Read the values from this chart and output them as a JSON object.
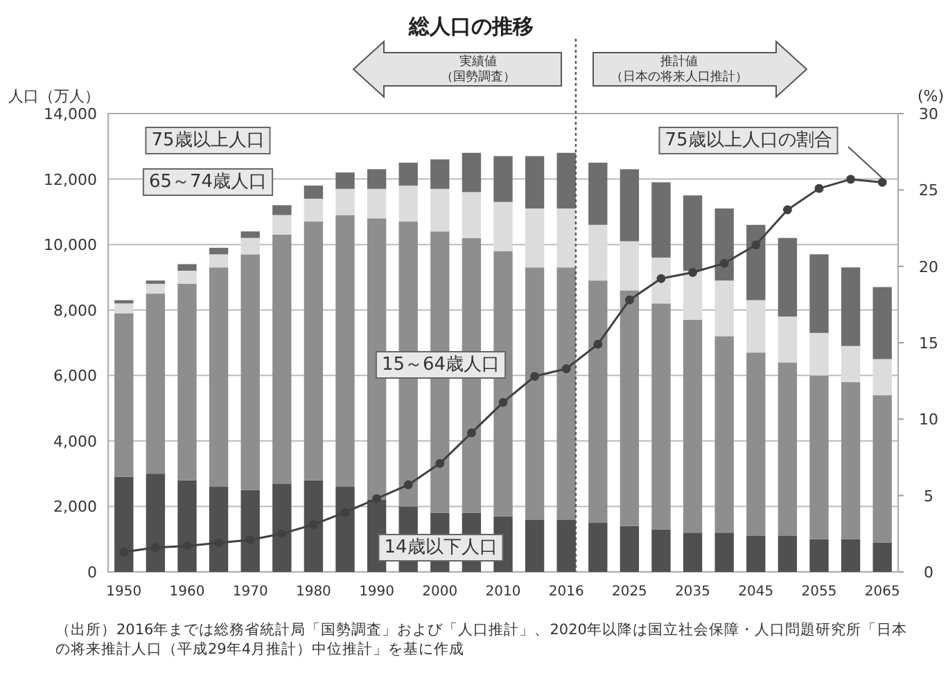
{
  "chart_data": {
    "type": "bar",
    "stacked": true,
    "title": "総人口の推移",
    "ylabel": "人口（万人）",
    "y2label": "(%)",
    "categories": [
      "1950",
      null,
      "1960",
      null,
      "1970",
      null,
      "1980",
      null,
      "1990",
      null,
      "2000",
      null,
      "2010",
      null,
      "2016",
      null,
      "2025",
      null,
      "2035",
      null,
      "2045",
      null,
      "2055",
      null,
      "2065"
    ],
    "series": [
      {
        "name": "14歳以下人口",
        "color": "#505050",
        "values": [
          2900,
          3000,
          2800,
          2600,
          2500,
          2700,
          2800,
          2600,
          2200,
          2000,
          1800,
          1800,
          1700,
          1600,
          1600,
          1500,
          1400,
          1300,
          1200,
          1200,
          1100,
          1100,
          1000,
          1000,
          900
        ]
      },
      {
        "name": "15～64歳人口",
        "color": "#8e8e8e",
        "values": [
          5000,
          5500,
          6000,
          6700,
          7200,
          7600,
          7900,
          8300,
          8600,
          8700,
          8600,
          8400,
          8100,
          7700,
          7700,
          7400,
          7200,
          6900,
          6500,
          6000,
          5600,
          5300,
          5000,
          4800,
          4500
        ]
      },
      {
        "name": "65～74歳人口",
        "color": "#dcdcdc",
        "values": [
          300,
          300,
          400,
          400,
          500,
          600,
          700,
          800,
          900,
          1100,
          1300,
          1400,
          1500,
          1800,
          1800,
          1700,
          1500,
          1400,
          1500,
          1700,
          1600,
          1400,
          1300,
          1100,
          1100
        ]
      },
      {
        "name": "75歳以上人口",
        "color": "#6e6e6e",
        "values": [
          100,
          100,
          200,
          200,
          200,
          300,
          400,
          500,
          600,
          700,
          900,
          1200,
          1400,
          1600,
          1700,
          1900,
          2200,
          2300,
          2300,
          2200,
          2300,
          2400,
          2400,
          2400,
          2200
        ]
      },
      {
        "name": "75歳以上人口の割合",
        "type": "line",
        "axis": "y2",
        "color": "#404040",
        "marker": "circle",
        "line_style": "solid",
        "values": [
          1.3,
          1.6,
          1.7,
          1.9,
          2.1,
          2.5,
          3.1,
          3.9,
          4.8,
          5.7,
          7.1,
          9.1,
          11.1,
          12.8,
          13.3,
          14.9,
          17.8,
          19.2,
          19.6,
          20.2,
          21.4,
          23.7,
          25.1,
          25.7,
          25.5
        ]
      }
    ],
    "ylim": [
      0,
      14000
    ],
    "yticks": [
      0,
      {
        "value": 2000,
        "label": "2,000"
      },
      {
        "value": 4000,
        "label": "4,000"
      },
      {
        "value": 6000,
        "label": "6,000"
      },
      {
        "value": 8000,
        "label": "8,000"
      },
      {
        "value": 10000,
        "label": "10,000"
      },
      {
        "value": 12000,
        "label": "12,000"
      },
      {
        "value": 14000,
        "label": "14,000"
      }
    ],
    "y2lim": [
      0,
      30
    ],
    "y2ticks": [
      0,
      5,
      10,
      15,
      20,
      25,
      30
    ],
    "grid": "y",
    "legend": false,
    "ref_lines": [
      {
        "axis": "x",
        "value": "2016",
        "line_style": "dotted",
        "color": "#555555"
      }
    ],
    "annotations": [
      "実績値",
      "（国勢調査）",
      "推計値",
      "（日本の将来人口推計）",
      "（出所）2016年までは総務省統計局「国勢調査」および「人口推計」、2020年以降は国立社会保障・人口問題研究所「日本の将来推計人口（平成29年4月推計）中位推計」を基に作成"
    ]
  }
}
